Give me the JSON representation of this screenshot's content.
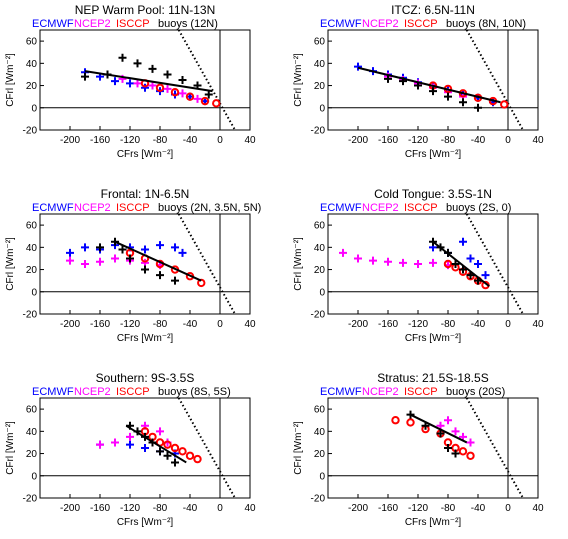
{
  "colors": {
    "ECMWF": "#0000ff",
    "NCEP2": "#ff00ff",
    "ISCCP": "#ff0000",
    "buoys": "#000000",
    "fit_line": "#000000",
    "zero_net_line": "#000000"
  },
  "chart_data": [
    {
      "type": "scatter",
      "title": "NEP Warm Pool: 11N-13N",
      "legend": [
        "ECMWF",
        "NCEP2",
        "ISCCP",
        "buoys (12N)"
      ],
      "xlabel": "CFrs [Wm⁻²]",
      "ylabel": "CFrl [Wm⁻²]",
      "xlim": [
        -240,
        40
      ],
      "ylim": [
        -20,
        70
      ],
      "xticks": [
        "-200",
        "-160",
        "-120",
        "-80",
        "-40",
        "0",
        "40"
      ],
      "xtick_values": [
        -200,
        -160,
        -120,
        -80,
        -40,
        0,
        40
      ],
      "yticks": [
        "-20",
        "0",
        "20",
        "40",
        "60"
      ],
      "ytick_values": [
        -20,
        0,
        20,
        40,
        60
      ],
      "series": [
        {
          "name": "ECMWF",
          "x": [
            -180,
            -160,
            -140,
            -120,
            -100,
            -80,
            -60,
            -40,
            -20
          ],
          "y": [
            32,
            28,
            24,
            22,
            18,
            15,
            12,
            10,
            6
          ]
        },
        {
          "name": "NCEP2",
          "x": [
            -130,
            -110,
            -90,
            -70,
            -50,
            -30
          ],
          "y": [
            26,
            22,
            20,
            17,
            13,
            8
          ]
        },
        {
          "name": "ISCCP",
          "x": [
            -100,
            -80,
            -60,
            -40,
            -20,
            -5
          ],
          "y": [
            22,
            18,
            14,
            10,
            6,
            4
          ]
        },
        {
          "name": "buoys",
          "x": [
            -180,
            -150,
            -130,
            -110,
            -90,
            -70,
            -50,
            -30,
            -15
          ],
          "y": [
            28,
            30,
            45,
            40,
            35,
            30,
            25,
            20,
            12
          ]
        }
      ],
      "fit_line": {
        "x": [
          -180,
          -10
        ],
        "y": [
          33,
          15
        ]
      },
      "zero_net_line": {
        "x": [
          -55,
          20
        ],
        "y": [
          70,
          -20
        ]
      }
    },
    {
      "type": "scatter",
      "title": "ITCZ: 6.5N-11N",
      "legend": [
        "ECMWF",
        "NCEP2",
        "ISCCP",
        "buoys (8N, 10N)"
      ],
      "xlabel": "CFrs [Wm⁻²]",
      "ylabel": "CFrl [Wm⁻²]",
      "xlim": [
        -240,
        40
      ],
      "ylim": [
        -20,
        70
      ],
      "xticks": [
        "-200",
        "-160",
        "-120",
        "-80",
        "-40",
        "0",
        "40"
      ],
      "xtick_values": [
        -200,
        -160,
        -120,
        -80,
        -40,
        0,
        40
      ],
      "yticks": [
        "-20",
        "0",
        "20",
        "40",
        "60"
      ],
      "ytick_values": [
        -20,
        0,
        20,
        40,
        60
      ],
      "series": [
        {
          "name": "ECMWF",
          "x": [
            -200,
            -180,
            -160,
            -140,
            -120,
            -100,
            -80,
            -60,
            -40,
            -20
          ],
          "y": [
            37,
            33,
            30,
            27,
            23,
            20,
            16,
            12,
            9,
            5
          ]
        },
        {
          "name": "NCEP2",
          "x": [
            -160,
            -140,
            -120,
            -100,
            -80,
            -60
          ],
          "y": [
            28,
            25,
            22,
            18,
            14,
            10
          ]
        },
        {
          "name": "ISCCP",
          "x": [
            -100,
            -80,
            -60,
            -40,
            -20,
            -5
          ],
          "y": [
            20,
            17,
            13,
            9,
            6,
            3
          ]
        },
        {
          "name": "buoys",
          "x": [
            -160,
            -140,
            -120,
            -100,
            -80,
            -60,
            -40
          ],
          "y": [
            26,
            24,
            20,
            15,
            10,
            5,
            0
          ]
        }
      ],
      "fit_line": {
        "x": [
          -200,
          -10
        ],
        "y": [
          36,
          5
        ]
      },
      "zero_net_line": {
        "x": [
          -55,
          20
        ],
        "y": [
          70,
          -20
        ]
      }
    },
    {
      "type": "scatter",
      "title": "Frontal: 1N-6.5N",
      "legend": [
        "ECMWF",
        "NCEP2",
        "ISCCP",
        "buoys (2N, 3.5N, 5N)"
      ],
      "xlabel": "CFrs [Wm⁻²]",
      "ylabel": "CFrl [Wm⁻²]",
      "xlim": [
        -240,
        40
      ],
      "ylim": [
        -20,
        70
      ],
      "xticks": [
        "-200",
        "-160",
        "-120",
        "-80",
        "-40",
        "0",
        "40"
      ],
      "xtick_values": [
        -200,
        -160,
        -120,
        -80,
        -40,
        0,
        40
      ],
      "yticks": [
        "-20",
        "0",
        "20",
        "40",
        "60"
      ],
      "ytick_values": [
        -20,
        0,
        20,
        40,
        60
      ],
      "series": [
        {
          "name": "ECMWF",
          "x": [
            -200,
            -180,
            -160,
            -140,
            -120,
            -100,
            -80,
            -60,
            -50
          ],
          "y": [
            35,
            40,
            38,
            42,
            40,
            38,
            42,
            40,
            35
          ]
        },
        {
          "name": "NCEP2",
          "x": [
            -200,
            -180,
            -160,
            -140,
            -120,
            -100,
            -80
          ],
          "y": [
            28,
            25,
            27,
            30,
            28,
            26,
            24
          ]
        },
        {
          "name": "ISCCP",
          "x": [
            -120,
            -100,
            -80,
            -60,
            -40,
            -25
          ],
          "y": [
            35,
            30,
            25,
            20,
            14,
            8
          ]
        },
        {
          "name": "buoys",
          "x": [
            -160,
            -140,
            -130,
            -120,
            -100,
            -80,
            -60
          ],
          "y": [
            40,
            45,
            38,
            30,
            20,
            15,
            10
          ]
        }
      ],
      "fit_line": {
        "x": [
          -140,
          -25
        ],
        "y": [
          45,
          10
        ]
      },
      "zero_net_line": {
        "x": [
          -55,
          20
        ],
        "y": [
          70,
          -20
        ]
      }
    },
    {
      "type": "scatter",
      "title": "Cold Tongue: 3.5S-1N",
      "legend": [
        "ECMWF",
        "NCEP2",
        "ISCCP",
        "buoys (2S, 0)"
      ],
      "xlabel": "CFrs [Wm⁻²]",
      "ylabel": "CFrl [Wm⁻²]",
      "xlim": [
        -240,
        40
      ],
      "ylim": [
        -20,
        70
      ],
      "xticks": [
        "-200",
        "-160",
        "-120",
        "-80",
        "-40",
        "0",
        "40"
      ],
      "xtick_values": [
        -200,
        -160,
        -120,
        -80,
        -40,
        0,
        40
      ],
      "yticks": [
        "-20",
        "0",
        "20",
        "40",
        "60"
      ],
      "ytick_values": [
        -20,
        0,
        20,
        40,
        60
      ],
      "series": [
        {
          "name": "ECMWF",
          "x": [
            -100,
            -80,
            -60,
            -50,
            -40,
            -30
          ],
          "y": [
            40,
            35,
            45,
            30,
            25,
            15
          ]
        },
        {
          "name": "NCEP2",
          "x": [
            -220,
            -200,
            -180,
            -160,
            -140,
            -120,
            -100,
            -80
          ],
          "y": [
            35,
            30,
            28,
            27,
            26,
            25,
            26,
            24
          ]
        },
        {
          "name": "ISCCP",
          "x": [
            -80,
            -70,
            -60,
            -50,
            -40,
            -30
          ],
          "y": [
            25,
            22,
            18,
            14,
            10,
            6
          ]
        },
        {
          "name": "buoys",
          "x": [
            -100,
            -90,
            -80,
            -70,
            -60,
            -50,
            -40
          ],
          "y": [
            45,
            40,
            35,
            25,
            20,
            15,
            10
          ]
        }
      ],
      "fit_line": {
        "x": [
          -100,
          -25
        ],
        "y": [
          45,
          5
        ]
      },
      "zero_net_line": {
        "x": [
          -55,
          20
        ],
        "y": [
          70,
          -20
        ]
      }
    },
    {
      "type": "scatter",
      "title": "Southern: 9S-3.5S",
      "legend": [
        "ECMWF",
        "NCEP2",
        "ISCCP",
        "buoys (8S, 5S)"
      ],
      "xlabel": "CFrs [Wm⁻²]",
      "ylabel": "CFrl [Wm⁻²]",
      "xlim": [
        -240,
        40
      ],
      "ylim": [
        -20,
        70
      ],
      "xticks": [
        "-200",
        "-160",
        "-120",
        "-80",
        "-40",
        "0",
        "40"
      ],
      "xtick_values": [
        -200,
        -160,
        -120,
        -80,
        -40,
        0,
        40
      ],
      "yticks": [
        "-20",
        "0",
        "20",
        "40",
        "60"
      ],
      "ytick_values": [
        -20,
        0,
        20,
        40,
        60
      ],
      "series": [
        {
          "name": "ECMWF",
          "x": [
            -160,
            -140,
            -120,
            -100,
            -80,
            -60
          ],
          "y": [
            28,
            30,
            28,
            25,
            22,
            20
          ]
        },
        {
          "name": "NCEP2",
          "x": [
            -160,
            -140,
            -120,
            -100,
            -80,
            -70
          ],
          "y": [
            28,
            30,
            35,
            45,
            40,
            30
          ]
        },
        {
          "name": "ISCCP",
          "x": [
            -100,
            -90,
            -80,
            -70,
            -60,
            -50,
            -40,
            -30
          ],
          "y": [
            40,
            35,
            30,
            28,
            25,
            22,
            18,
            15
          ]
        },
        {
          "name": "buoys",
          "x": [
            -120,
            -110,
            -100,
            -90,
            -80,
            -70,
            -60
          ],
          "y": [
            45,
            40,
            35,
            30,
            22,
            18,
            12
          ]
        }
      ],
      "fit_line": {
        "x": [
          -125,
          -45
        ],
        "y": [
          45,
          12
        ]
      },
      "zero_net_line": {
        "x": [
          -55,
          20
        ],
        "y": [
          70,
          -20
        ]
      }
    },
    {
      "type": "scatter",
      "title": "Stratus: 21.5S-18.5S",
      "legend": [
        "ECMWF",
        "NCEP2",
        "ISCCP",
        "buoys (20S)"
      ],
      "xlabel": "CFrs [Wm⁻²]",
      "ylabel": "CFrl [Wm⁻²]",
      "xlim": [
        -240,
        40
      ],
      "ylim": [
        -20,
        70
      ],
      "xticks": [
        "-200",
        "-160",
        "-120",
        "-80",
        "-40",
        "0",
        "40"
      ],
      "xtick_values": [
        -200,
        -160,
        -120,
        -80,
        -40,
        0,
        40
      ],
      "yticks": [
        "-20",
        "0",
        "20",
        "40",
        "60"
      ],
      "ytick_values": [
        -20,
        0,
        20,
        40,
        60
      ],
      "series": [
        {
          "name": "ECMWF",
          "x": [],
          "y": []
        },
        {
          "name": "NCEP2",
          "x": [
            -90,
            -80,
            -70,
            -60,
            -50
          ],
          "y": [
            45,
            50,
            40,
            35,
            30
          ]
        },
        {
          "name": "ISCCP",
          "x": [
            -150,
            -130,
            -110,
            -90,
            -80,
            -70,
            -60,
            -50
          ],
          "y": [
            50,
            48,
            42,
            38,
            30,
            25,
            22,
            18
          ]
        },
        {
          "name": "buoys",
          "x": [
            -130,
            -110,
            -90,
            -80,
            -70
          ],
          "y": [
            55,
            45,
            38,
            25,
            20
          ]
        }
      ],
      "fit_line": {
        "x": [
          -130,
          -55
        ],
        "y": [
          55,
          30
        ]
      },
      "zero_net_line": {
        "x": [
          -55,
          20
        ],
        "y": [
          70,
          -20
        ]
      }
    }
  ]
}
